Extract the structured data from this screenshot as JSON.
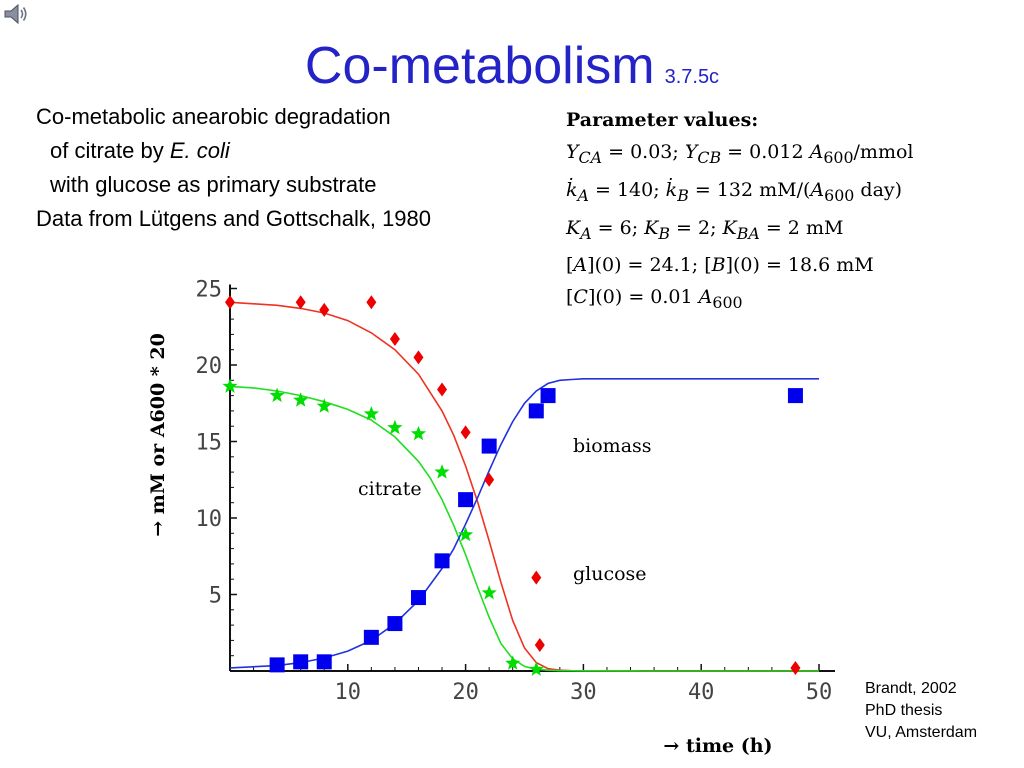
{
  "header": {
    "title": "Co-metabolism",
    "section": "3.7.5c"
  },
  "description": {
    "line1": "Co-metabolic anearobic degradation",
    "line2_prefix": "of citrate by ",
    "line2_organism": "E. coli",
    "line3": "with glucose as primary substrate",
    "line4": "Data from Lütgens and Gottschalk, 1980"
  },
  "parameters": {
    "heading": "Parameter values:",
    "lines": [
      "Y_CA = 0.03; Y_CB = 0.012 A_600/mmol",
      "k_A = 140; k_B = 132 mM/(A_600 day)",
      "K_A = 6; K_B = 2; K_BA = 2 mM",
      "[A](0) = 24.1; [B](0) = 18.6 mM",
      "[C](0) = 0.01 A_600"
    ]
  },
  "credit": {
    "line1": "Brandt, 2002",
    "line2": "PhD thesis",
    "line3": "VU, Amsterdam"
  },
  "chart_data": {
    "type": "scatter",
    "xlabel": "→ time (h)",
    "ylabel": "→ mM or A600 * 20",
    "xlim": [
      0,
      50
    ],
    "ylim": [
      0,
      25
    ],
    "xticks": [
      10,
      20,
      30,
      40,
      50
    ],
    "yticks": [
      5,
      10,
      15,
      20,
      25
    ],
    "grid": false,
    "series": [
      {
        "name": "citrate",
        "marker": "star",
        "color": "#00dd00",
        "x": [
          0,
          4,
          6,
          8,
          12,
          14,
          16,
          18,
          20,
          22,
          24,
          26
        ],
        "y": [
          18.6,
          18.0,
          17.7,
          17.3,
          16.8,
          15.9,
          15.5,
          13.0,
          8.9,
          5.1,
          0.5,
          0.1
        ]
      },
      {
        "name": "glucose",
        "marker": "diamond",
        "color": "#ee0000",
        "x": [
          0,
          6,
          8,
          12,
          14,
          16,
          18,
          20,
          22,
          26,
          26.3,
          48
        ],
        "y": [
          24.1,
          24.1,
          23.6,
          24.1,
          21.7,
          20.5,
          18.4,
          15.6,
          12.5,
          6.1,
          1.7,
          0.2
        ]
      },
      {
        "name": "biomass",
        "marker": "square",
        "color": "#0000ee",
        "x": [
          4,
          6,
          8,
          12,
          14,
          16,
          18,
          20,
          22,
          26,
          27,
          48
        ],
        "y": [
          0.4,
          0.6,
          0.6,
          2.2,
          3.1,
          4.8,
          7.2,
          11.2,
          14.7,
          17.0,
          18.0,
          18.0
        ]
      }
    ],
    "model_curves": [
      {
        "series": "glucose",
        "color": "#ee3322",
        "x": [
          0,
          2,
          4,
          6,
          8,
          10,
          12,
          14,
          16,
          18,
          19,
          20,
          21,
          22,
          23,
          24,
          25,
          26,
          27,
          28,
          29,
          30,
          35,
          40,
          45,
          50
        ],
        "y": [
          24.1,
          24.0,
          23.9,
          23.7,
          23.4,
          22.9,
          22.1,
          21.0,
          19.4,
          17.0,
          15.4,
          13.4,
          11.1,
          8.5,
          5.8,
          3.3,
          1.5,
          0.55,
          0.15,
          0.05,
          0.02,
          0.01,
          0,
          0,
          0,
          0
        ]
      },
      {
        "series": "citrate",
        "color": "#22dd22",
        "x": [
          0,
          2,
          4,
          6,
          8,
          10,
          12,
          14,
          16,
          17,
          18,
          19,
          20,
          21,
          22,
          23,
          24,
          25,
          26,
          27,
          28,
          30,
          35,
          40,
          45,
          50
        ],
        "y": [
          18.6,
          18.5,
          18.3,
          18.0,
          17.6,
          17.1,
          16.4,
          15.3,
          13.7,
          12.6,
          11.2,
          9.5,
          7.6,
          5.5,
          3.5,
          1.8,
          0.8,
          0.3,
          0.12,
          0.05,
          0.02,
          0.01,
          0,
          0,
          0,
          0
        ]
      },
      {
        "series": "biomass",
        "color": "#2233dd",
        "x": [
          0,
          4,
          6,
          8,
          10,
          12,
          14,
          16,
          18,
          19,
          20,
          21,
          22,
          23,
          24,
          25,
          26,
          27,
          28,
          29,
          30,
          35,
          40,
          45,
          50
        ],
        "y": [
          0.2,
          0.35,
          0.55,
          0.85,
          1.3,
          2.0,
          3.1,
          4.6,
          6.7,
          8.0,
          9.6,
          11.3,
          13.1,
          14.8,
          16.3,
          17.5,
          18.3,
          18.8,
          19.0,
          19.05,
          19.1,
          19.1,
          19.1,
          19.1,
          19.1
        ]
      }
    ],
    "annotations": [
      "biomass",
      "citrate",
      "glucose"
    ]
  }
}
